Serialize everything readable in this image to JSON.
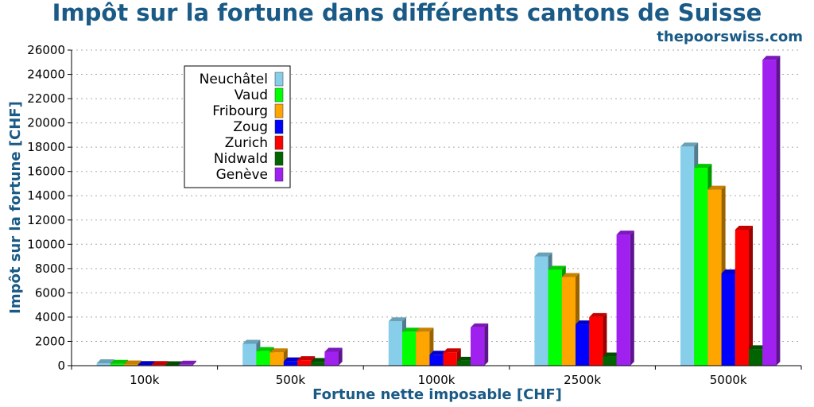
{
  "chart_data": {
    "type": "bar",
    "title": "Impôt sur la fortune dans différents cantons de Suisse",
    "subtitle": "thepoorswiss.com",
    "xlabel": "Fortune nette imposable [CHF]",
    "ylabel": "Impôt sur la fortune [CHF]",
    "ylim": [
      0,
      26000
    ],
    "yticks": [
      0,
      2000,
      4000,
      6000,
      8000,
      10000,
      12000,
      14000,
      16000,
      18000,
      20000,
      22000,
      24000,
      26000
    ],
    "grid": "horizontal-dotted",
    "legend_position": "top-left",
    "categories": [
      "100k",
      "500k",
      "1000k",
      "2500k",
      "5000k"
    ],
    "series": [
      {
        "name": "Neuchâtel",
        "color": "#87ceeb",
        "values": [
          200,
          1800,
          3650,
          9000,
          18050
        ]
      },
      {
        "name": "Vaud",
        "color": "#00ff00",
        "values": [
          150,
          1200,
          2800,
          7900,
          16300
        ]
      },
      {
        "name": "Fribourg",
        "color": "#ffa500",
        "values": [
          100,
          1100,
          2800,
          7300,
          14500
        ]
      },
      {
        "name": "Zoug",
        "color": "#0000ff",
        "values": [
          50,
          350,
          900,
          3400,
          7600
        ]
      },
      {
        "name": "Zurich",
        "color": "#ff0000",
        "values": [
          50,
          450,
          1100,
          4000,
          11200
        ]
      },
      {
        "name": "Nidwald",
        "color": "#006400",
        "values": [
          30,
          300,
          400,
          750,
          1350
        ]
      },
      {
        "name": "Genève",
        "color": "#a020f0",
        "values": [
          80,
          1150,
          3150,
          10800,
          25200
        ]
      }
    ]
  }
}
